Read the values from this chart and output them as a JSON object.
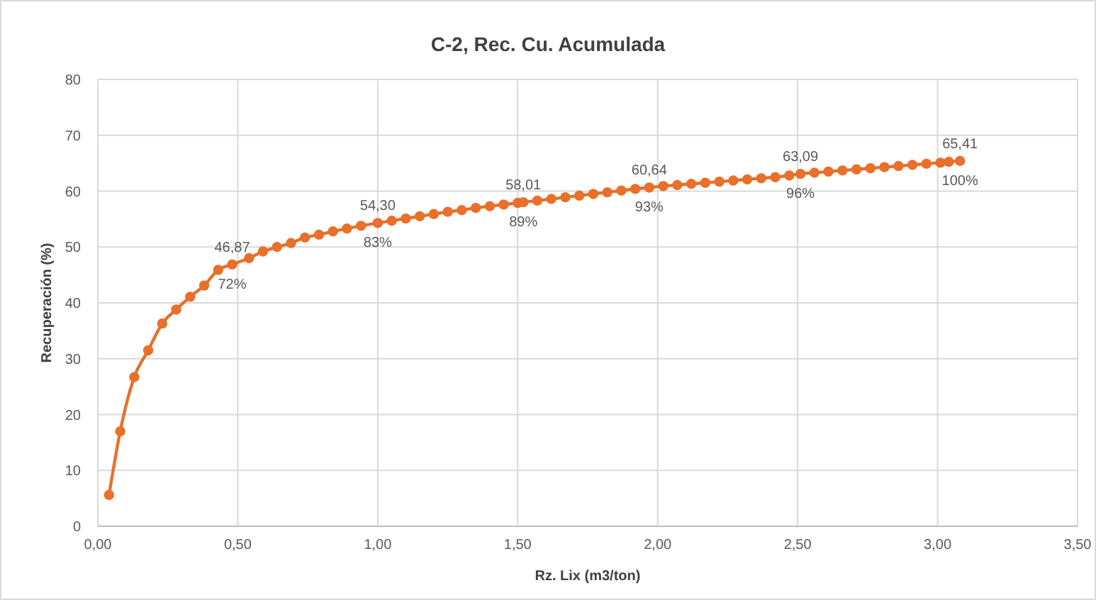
{
  "chart_data": {
    "type": "line",
    "title": "C-2, Rec. Cu. Acumulada",
    "xlabel": "Rz. Lix (m3/ton)",
    "ylabel": "Recuperación (%)",
    "x": [
      0.04,
      0.08,
      0.13,
      0.18,
      0.23,
      0.28,
      0.33,
      0.38,
      0.43,
      0.48,
      0.54,
      0.59,
      0.64,
      0.69,
      0.74,
      0.79,
      0.84,
      0.89,
      0.94,
      1.0,
      1.05,
      1.1,
      1.15,
      1.2,
      1.25,
      1.3,
      1.35,
      1.4,
      1.45,
      1.5,
      1.52,
      1.57,
      1.62,
      1.67,
      1.72,
      1.77,
      1.82,
      1.87,
      1.92,
      1.97,
      2.02,
      2.07,
      2.12,
      2.17,
      2.22,
      2.27,
      2.32,
      2.37,
      2.42,
      2.47,
      2.51,
      2.56,
      2.61,
      2.66,
      2.71,
      2.76,
      2.81,
      2.86,
      2.91,
      2.96,
      3.01,
      3.04,
      3.08
    ],
    "series": [
      {
        "color": "#e8702a",
        "values": [
          5.6,
          17.0,
          26.7,
          31.5,
          36.3,
          38.8,
          41.1,
          43.1,
          45.9,
          46.87,
          48.0,
          49.2,
          50.0,
          50.7,
          51.7,
          52.2,
          52.8,
          53.3,
          53.8,
          54.3,
          54.7,
          55.1,
          55.5,
          55.9,
          56.3,
          56.6,
          57.0,
          57.3,
          57.6,
          57.9,
          58.01,
          58.3,
          58.6,
          58.9,
          59.2,
          59.5,
          59.8,
          60.1,
          60.4,
          60.64,
          60.9,
          61.1,
          61.3,
          61.5,
          61.7,
          61.9,
          62.1,
          62.3,
          62.5,
          62.8,
          63.09,
          63.3,
          63.5,
          63.7,
          63.9,
          64.1,
          64.3,
          64.5,
          64.7,
          64.9,
          65.1,
          65.25,
          65.41
        ],
        "value_labels": [
          null,
          null,
          null,
          null,
          null,
          null,
          null,
          null,
          null,
          "46,87",
          null,
          null,
          null,
          null,
          null,
          null,
          null,
          null,
          null,
          "54,30",
          null,
          null,
          null,
          null,
          null,
          null,
          null,
          null,
          null,
          null,
          "58,01",
          null,
          null,
          null,
          null,
          null,
          null,
          null,
          null,
          "60,64",
          null,
          null,
          null,
          null,
          null,
          null,
          null,
          null,
          null,
          null,
          "63,09",
          null,
          null,
          null,
          null,
          null,
          null,
          null,
          null,
          null,
          null,
          null,
          "65,41"
        ]
      }
    ],
    "xlim": [
      0,
      3.5
    ],
    "xticks": [
      {
        "value": 0,
        "label": "0,00"
      },
      {
        "value": 0.5,
        "label": "0,50"
      },
      {
        "value": 1,
        "label": "1,00"
      },
      {
        "value": 1.5,
        "label": "1,50"
      },
      {
        "value": 2,
        "label": "2,00"
      },
      {
        "value": 2.5,
        "label": "2,50"
      },
      {
        "value": 3,
        "label": "3,00"
      },
      {
        "value": 3.5,
        "label": "3,50"
      }
    ],
    "ylim": [
      0,
      80
    ],
    "yticks": [
      0,
      10,
      20,
      30,
      40,
      50,
      60,
      70,
      80
    ],
    "grid": true,
    "marker": "circle",
    "line_style": "solid",
    "annotations": [
      {
        "text": "72%",
        "x": 0.48,
        "y": 46.87
      },
      {
        "text": "83%",
        "x": 1.0,
        "y": 54.3
      },
      {
        "text": "89%",
        "x": 1.52,
        "y": 58.01
      },
      {
        "text": "93%",
        "x": 1.97,
        "y": 60.64
      },
      {
        "text": "96%",
        "x": 2.51,
        "y": 63.09
      },
      {
        "text": "100%",
        "x": 3.08,
        "y": 65.41
      }
    ]
  }
}
